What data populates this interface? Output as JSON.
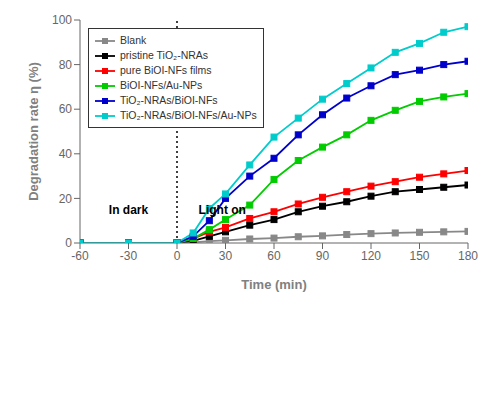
{
  "chart_data": {
    "type": "line",
    "title": "",
    "xlabel": "Time (min)",
    "ylabel": "Degradation rate η (%)",
    "xlim": [
      -60,
      180
    ],
    "ylim": [
      0,
      100
    ],
    "xticks": [
      -60,
      -30,
      0,
      30,
      60,
      90,
      120,
      150,
      180
    ],
    "yticks": [
      0,
      20,
      40,
      60,
      80,
      100
    ],
    "grid": false,
    "legend": "upper left",
    "marker": "square",
    "vline": 0,
    "annotations": [
      {
        "text": "In dark",
        "x": -30,
        "y": 15
      },
      {
        "text": "Light on",
        "x": 28,
        "y": 15
      }
    ],
    "x": [
      -60,
      -30,
      0,
      10,
      20,
      30,
      45,
      60,
      75,
      90,
      105,
      120,
      135,
      150,
      165,
      180
    ],
    "series": [
      {
        "name": "Blank",
        "color": "#888888",
        "values": [
          0,
          0,
          0,
          0.3,
          0.8,
          1.2,
          1.8,
          2.2,
          2.8,
          3.2,
          3.8,
          4.2,
          4.5,
          4.8,
          5.0,
          5.2
        ]
      },
      {
        "name": "pristine TiO₂-NRAs",
        "color": "#000000",
        "values": [
          0,
          0,
          0,
          1.0,
          3.0,
          5.0,
          8.0,
          10.5,
          14.0,
          16.5,
          18.5,
          21.0,
          23.0,
          24.0,
          25.0,
          26.0
        ]
      },
      {
        "name": "pure BiOI-NFs films",
        "color": "#ff0000",
        "values": [
          0,
          0,
          0,
          2.0,
          5.0,
          7.0,
          11.0,
          14.0,
          17.5,
          20.5,
          23.0,
          25.5,
          27.5,
          29.5,
          31.0,
          32.5
        ]
      },
      {
        "name": "BiOI-NFs/Au-NPs",
        "color": "#00cc00",
        "values": [
          0,
          0,
          0,
          2.0,
          6.0,
          10.5,
          17.0,
          28.5,
          37.0,
          43.0,
          48.5,
          55.0,
          59.5,
          63.5,
          65.5,
          67.0
        ]
      },
      {
        "name": "TiO₂-NRAs/BiOI-NFs",
        "color": "#0000cc",
        "values": [
          0,
          0,
          0,
          3.0,
          10.0,
          20.0,
          30.0,
          38.0,
          48.5,
          57.5,
          65.0,
          70.5,
          75.5,
          77.5,
          80.0,
          81.5
        ]
      },
      {
        "name": "TiO₂-NRAs/BiOI-NFs/Au-NPs",
        "color": "#00cccc",
        "values": [
          0,
          0,
          0,
          4.5,
          15.5,
          22.0,
          35.0,
          47.5,
          56.0,
          64.5,
          71.5,
          78.5,
          85.5,
          89.5,
          94.5,
          97.0
        ]
      }
    ]
  }
}
